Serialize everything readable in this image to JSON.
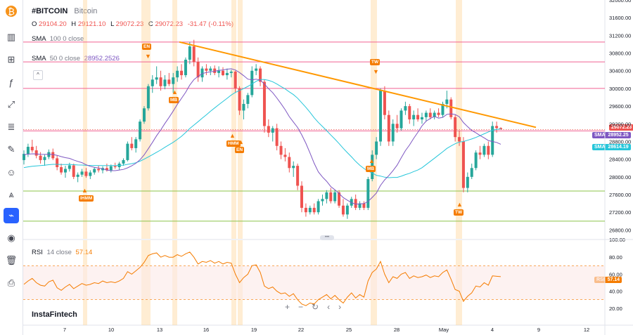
{
  "symbol": "#BITCOIN",
  "name": "Bitcoin",
  "ohlc": {
    "o_label": "O",
    "o": "29104.20",
    "h_label": "H",
    "h": "29121.10",
    "l_label": "L",
    "l": "29072.23",
    "c_label": "C",
    "c": "29072.23",
    "change": "-31.47 (-0.11%)"
  },
  "sma100": {
    "label": "SMA",
    "params": "100 0 close"
  },
  "sma50": {
    "label": "SMA",
    "params": "50 0 close",
    "value": "28952.2526"
  },
  "rsi": {
    "label": "RSI",
    "params": "14 close",
    "value": "57.14",
    "tag": "RSI",
    "tag_value": "57.14"
  },
  "price_tags": {
    "last": "29072.23",
    "sma_label": "SMA",
    "sma50": "28952.25",
    "sma100": "28614.19"
  },
  "rsi_axis_top": "100.00",
  "watermark": "InstaFintech",
  "signals": [
    {
      "id": "en1",
      "label": "EN",
      "x": 210,
      "y": 67,
      "dir": "down"
    },
    {
      "id": "mb1",
      "label": "MB",
      "x": 248,
      "y": 143,
      "dir": "up"
    },
    {
      "id": "ihmm1",
      "label": "IHMM",
      "x": 120,
      "y": 283,
      "dir": "up"
    },
    {
      "id": "hmm1",
      "label": "HMM",
      "x": 330,
      "y": 205,
      "dir": "up"
    },
    {
      "id": "en2",
      "label": "EN",
      "x": 342,
      "y": 214,
      "dir": "up"
    },
    {
      "id": "tw1",
      "label": "TW",
      "x": 534,
      "y": 89,
      "dir": "down"
    },
    {
      "id": "mb2",
      "label": "MB",
      "x": 528,
      "y": 241,
      "dir": "up"
    },
    {
      "id": "tw2",
      "label": "TW",
      "x": 653,
      "y": 303,
      "dir": "up"
    }
  ],
  "colors": {
    "up": "#26a69a",
    "down": "#ef5350",
    "sma50": "#7e57c2",
    "sma100": "#26c6da",
    "trend": "#ff9800",
    "hline_red": "#f06292",
    "hline_green": "#8bc34a",
    "rsi": "#f57c00"
  },
  "toolbar": [
    "bitcoin-icon",
    "candles-icon",
    "indicators-icon",
    "fx-icon",
    "line-tool-icon",
    "fib-icon",
    "brush-icon",
    "emoji-icon",
    "pattern-icon",
    "magnet-icon",
    "eye-icon",
    "trash-icon",
    "lock-icon"
  ],
  "chart_data": {
    "type": "candlestick",
    "y_axis_ticks": [
      "32000.00",
      "31600.00",
      "31200.00",
      "30800.00",
      "30400.00",
      "30000.00",
      "29600.00",
      "29200.00",
      "28800.00",
      "28400.00",
      "28000.00",
      "27600.00",
      "27200.00",
      "26800.00"
    ],
    "ylim": [
      26600,
      32000
    ],
    "x_tick_labels": [
      "7",
      "10",
      "13",
      "16",
      "19",
      "22",
      "25",
      "28",
      "May",
      "4",
      "9",
      "12"
    ],
    "rsi_ticks": [
      "80.00",
      "60.00",
      "40.00",
      "20.00"
    ],
    "rsi_range": [
      0,
      100
    ],
    "horizontal_levels": [
      31050,
      30600,
      30000,
      29040,
      27680,
      27000
    ],
    "trendline": {
      "from": [
        255,
        31050
      ],
      "to": [
        762,
        29120
      ]
    },
    "candles": [
      [
        28380,
        28600,
        28280,
        28520
      ],
      [
        28520,
        28750,
        28450,
        28680
      ],
      [
        28680,
        28840,
        28550,
        28600
      ],
      [
        28600,
        28700,
        28420,
        28480
      ],
      [
        28480,
        28560,
        28300,
        28380
      ],
      [
        28380,
        28500,
        28250,
        28450
      ],
      [
        28450,
        28620,
        28400,
        28560
      ],
      [
        28560,
        28640,
        28380,
        28420
      ],
      [
        28420,
        28480,
        28150,
        28220
      ],
      [
        28220,
        28300,
        28050,
        28100
      ],
      [
        28100,
        28250,
        27980,
        28180
      ],
      [
        28180,
        28320,
        28120,
        28260
      ],
      [
        28260,
        28300,
        27950,
        28000
      ],
      [
        28000,
        28100,
        27880,
        28050
      ],
      [
        28050,
        28180,
        28000,
        28120
      ],
      [
        28120,
        28200,
        27980,
        28020
      ],
      [
        28020,
        28150,
        27950,
        28100
      ],
      [
        28100,
        28220,
        28050,
        28180
      ],
      [
        28180,
        28260,
        28100,
        28150
      ],
      [
        28150,
        28240,
        28080,
        28200
      ],
      [
        28200,
        28300,
        28120,
        28150
      ],
      [
        28150,
        28280,
        28100,
        28240
      ],
      [
        28240,
        28320,
        28180,
        28220
      ],
      [
        28220,
        28340,
        28150,
        28300
      ],
      [
        28300,
        28420,
        28250,
        28380
      ],
      [
        28380,
        28800,
        28350,
        28750
      ],
      [
        28750,
        28900,
        28600,
        28650
      ],
      [
        28650,
        28900,
        28550,
        28850
      ],
      [
        28850,
        29300,
        28800,
        29250
      ],
      [
        29250,
        29600,
        29200,
        29550
      ],
      [
        29550,
        30100,
        29500,
        30050
      ],
      [
        30050,
        30300,
        29900,
        30200
      ],
      [
        30200,
        30500,
        30100,
        30250
      ],
      [
        30250,
        30400,
        29950,
        30050
      ],
      [
        30050,
        30300,
        29980,
        30200
      ],
      [
        30200,
        30350,
        30050,
        30100
      ],
      [
        30100,
        30350,
        29900,
        30250
      ],
      [
        30250,
        30500,
        30150,
        30400
      ],
      [
        30400,
        30550,
        30200,
        30300
      ],
      [
        30300,
        30700,
        30250,
        30650
      ],
      [
        30650,
        31050,
        30550,
        30950
      ],
      [
        30950,
        31100,
        30500,
        30600
      ],
      [
        30600,
        30700,
        30150,
        30250
      ],
      [
        30250,
        30500,
        30150,
        30450
      ],
      [
        30450,
        30550,
        30300,
        30400
      ],
      [
        30400,
        30500,
        30300,
        30450
      ],
      [
        30450,
        30520,
        30300,
        30350
      ],
      [
        30350,
        30500,
        30250,
        30400
      ],
      [
        30400,
        30480,
        30280,
        30300
      ],
      [
        30300,
        30450,
        30200,
        30350
      ],
      [
        30350,
        30420,
        30250,
        30380
      ],
      [
        30380,
        30400,
        29900,
        30000
      ],
      [
        30000,
        30050,
        29400,
        29500
      ],
      [
        29500,
        29750,
        29300,
        29650
      ],
      [
        29650,
        29900,
        29550,
        29850
      ],
      [
        29850,
        30500,
        29800,
        30400
      ],
      [
        30400,
        30550,
        30300,
        30450
      ],
      [
        30450,
        30500,
        30050,
        30150
      ],
      [
        30150,
        30200,
        29000,
        29150
      ],
      [
        29150,
        29300,
        28900,
        29000
      ],
      [
        29000,
        29150,
        28800,
        29100
      ],
      [
        29100,
        29200,
        28600,
        28700
      ],
      [
        28700,
        28800,
        28400,
        28500
      ],
      [
        28500,
        28650,
        28350,
        28450
      ],
      [
        28450,
        28550,
        28100,
        28200
      ],
      [
        28200,
        28350,
        28000,
        28250
      ],
      [
        28250,
        28300,
        27700,
        27800
      ],
      [
        27800,
        27900,
        27200,
        27300
      ],
      [
        27300,
        27400,
        27100,
        27200
      ],
      [
        27200,
        27350,
        27150,
        27300
      ],
      [
        27300,
        27400,
        27150,
        27200
      ],
      [
        27200,
        27500,
        27150,
        27450
      ],
      [
        27450,
        27600,
        27350,
        27500
      ],
      [
        27500,
        27700,
        27400,
        27650
      ],
      [
        27650,
        27750,
        27400,
        27450
      ],
      [
        27450,
        27700,
        27400,
        27650
      ],
      [
        27650,
        27700,
        27300,
        27350
      ],
      [
        27350,
        27500,
        27100,
        27150
      ],
      [
        27150,
        27400,
        27050,
        27350
      ],
      [
        27350,
        27550,
        27300,
        27500
      ],
      [
        27500,
        27600,
        27250,
        27300
      ],
      [
        27300,
        27450,
        27250,
        27400
      ],
      [
        27400,
        27450,
        27250,
        27300
      ],
      [
        27300,
        28000,
        27250,
        27950
      ],
      [
        27950,
        28600,
        27900,
        28500
      ],
      [
        28500,
        28900,
        28400,
        28800
      ],
      [
        28800,
        30000,
        28700,
        29950
      ],
      [
        29950,
        30050,
        29300,
        29400
      ],
      [
        29400,
        29500,
        28700,
        28800
      ],
      [
        28800,
        29300,
        28700,
        29200
      ],
      [
        29200,
        29400,
        29000,
        29100
      ],
      [
        29100,
        29550,
        29050,
        29500
      ],
      [
        29500,
        29700,
        29400,
        29600
      ],
      [
        29600,
        29650,
        29200,
        29300
      ],
      [
        29300,
        29500,
        29150,
        29400
      ],
      [
        29400,
        29550,
        29250,
        29300
      ],
      [
        29300,
        29450,
        29200,
        29350
      ],
      [
        29350,
        29500,
        29250,
        29450
      ],
      [
        29450,
        29550,
        29300,
        29350
      ],
      [
        29350,
        29500,
        29300,
        29450
      ],
      [
        29450,
        29550,
        29350,
        29400
      ],
      [
        29400,
        29700,
        29350,
        29650
      ],
      [
        29650,
        29950,
        29550,
        29750
      ],
      [
        29750,
        29800,
        29300,
        29350
      ],
      [
        29350,
        29400,
        28800,
        28900
      ],
      [
        28900,
        29050,
        28700,
        28800
      ],
      [
        28800,
        28900,
        27650,
        27750
      ],
      [
        27750,
        28100,
        27650,
        28000
      ],
      [
        28000,
        28300,
        27950,
        28200
      ],
      [
        28200,
        28600,
        28150,
        28550
      ],
      [
        28550,
        28700,
        28400,
        28500
      ],
      [
        28500,
        28750,
        28450,
        28700
      ],
      [
        28700,
        28800,
        28400,
        28500
      ],
      [
        28500,
        29250,
        28450,
        29150
      ],
      [
        29150,
        29250,
        29000,
        29104
      ],
      [
        29104,
        29121,
        29072,
        29072
      ]
    ],
    "rsi_values": [
      48,
      52,
      55,
      50,
      47,
      46,
      51,
      53,
      44,
      41,
      45,
      48,
      43,
      46,
      49,
      47,
      48,
      50,
      49,
      52,
      50,
      51,
      50,
      52,
      55,
      63,
      60,
      64,
      68,
      74,
      82,
      84,
      85,
      80,
      82,
      80,
      80,
      83,
      81,
      84,
      86,
      80,
      72,
      75,
      74,
      76,
      73,
      75,
      72,
      74,
      73,
      60,
      50,
      56,
      60,
      70,
      71,
      62,
      46,
      43,
      45,
      40,
      37,
      38,
      34,
      37,
      30,
      25,
      23,
      26,
      25,
      30,
      33,
      36,
      31,
      35,
      30,
      26,
      33,
      38,
      32,
      36,
      33,
      52,
      62,
      66,
      75,
      60,
      50,
      57,
      55,
      60,
      62,
      55,
      58,
      56,
      57,
      59,
      56,
      58,
      57,
      62,
      65,
      54,
      42,
      40,
      28,
      34,
      38,
      46,
      45,
      50,
      47,
      58,
      57.5,
      57.1
    ]
  }
}
